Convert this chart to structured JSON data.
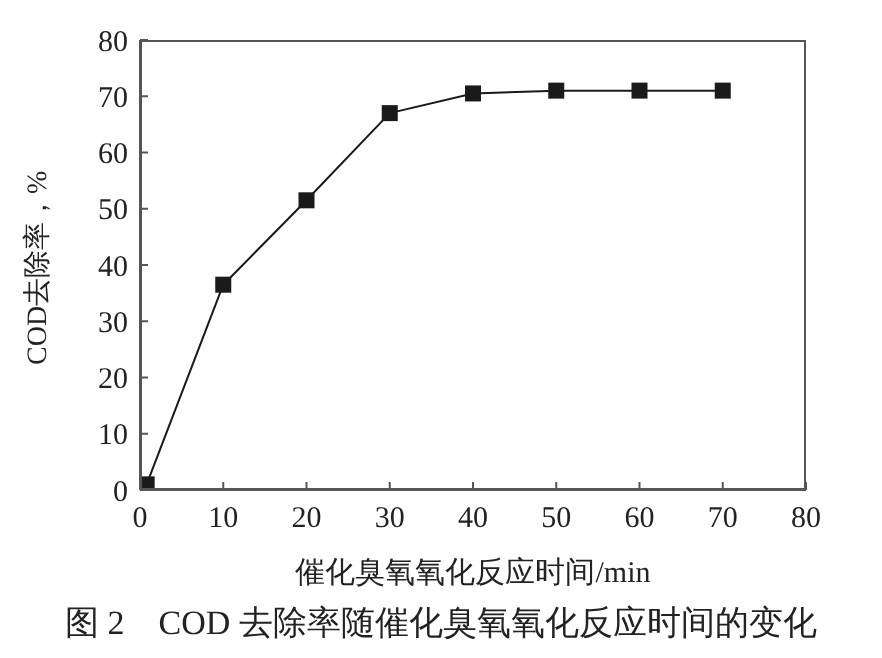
{
  "chart_data": {
    "type": "line",
    "title": "图 2　COD 去除率随催化臭氧氧化反应时间的变化",
    "xlabel": "催化臭氧氧化反应时间/min",
    "ylabel": "COD去除率，%",
    "x": [
      0.8,
      10,
      20,
      30,
      40,
      50,
      60,
      70
    ],
    "series": [
      {
        "color": "#1a1a1a",
        "values": [
          1,
          36.5,
          51.5,
          67,
          70.5,
          71,
          71,
          71
        ]
      }
    ],
    "xlim": [
      0,
      80
    ],
    "xticks": [
      0,
      10,
      20,
      30,
      40,
      50,
      60,
      70,
      80
    ],
    "ylim": [
      0,
      80
    ],
    "yticks": [
      0,
      10,
      20,
      30,
      40,
      50,
      60,
      70,
      80
    ],
    "marker": "square",
    "grid": false,
    "legend": false
  }
}
